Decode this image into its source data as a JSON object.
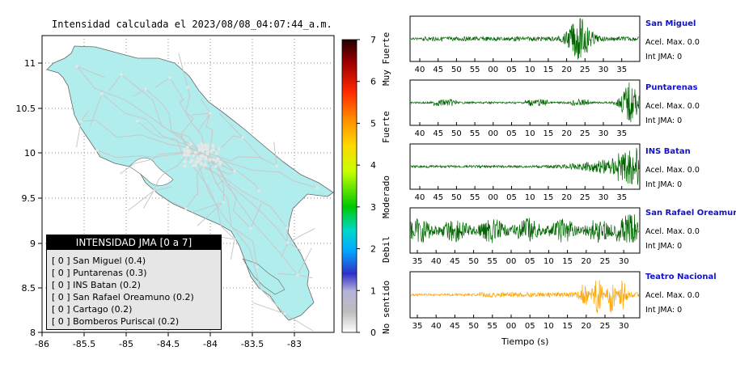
{
  "map": {
    "title": "Intensidad calculada el 2023/08/08_04:07:44_a.m.",
    "x_ticks": [
      "-86",
      "-85.5",
      "-85",
      "-84.5",
      "-84",
      "-83.5",
      "-83"
    ],
    "y_ticks": [
      "11",
      "10.5",
      "10",
      "9.5",
      "9",
      "8.5",
      "8"
    ],
    "land_color": "#b2eded",
    "road_color": "#c8c8c8"
  },
  "legend": {
    "header": "INTENSIDAD JMA [0 a 7]",
    "items": [
      "[ 0 ]  San Miguel (0.4)",
      "[ 0 ]  Puntarenas (0.3)",
      "[ 0 ]  INS Batan (0.2)",
      "[ 0 ]  San Rafael Oreamuno (0.2)",
      "[ 0 ]  Cartago (0.2)",
      "[ 0 ]  Bomberos Puriscal (0.2)"
    ]
  },
  "colorbar": {
    "ticks": [
      "7",
      "6",
      "5",
      "4",
      "3",
      "2",
      "1",
      "0"
    ],
    "category_labels": [
      "Muy Fuerte",
      "Fuerte",
      "Moderado",
      "Debil",
      "No sentido"
    ]
  },
  "waveforms": {
    "x_axis_label": "Tiempo (s)",
    "stations": [
      {
        "name": "San Miguel",
        "acel": "Acel. Max. 0.0",
        "jma": "Int JMA: 0",
        "ticks": [
          "40",
          "45",
          "50",
          "55",
          "00",
          "05",
          "10",
          "15",
          "20",
          "25",
          "30",
          "35"
        ],
        "color": "#006400"
      },
      {
        "name": "Puntarenas",
        "acel": "Acel. Max. 0.0",
        "jma": "Int JMA: 0",
        "ticks": [
          "40",
          "45",
          "50",
          "55",
          "00",
          "05",
          "10",
          "15",
          "20",
          "25",
          "30",
          "35"
        ],
        "color": "#006400"
      },
      {
        "name": "INS Batan",
        "acel": "Acel. Max. 0.0",
        "jma": "Int JMA: 0",
        "ticks": [
          "40",
          "45",
          "50",
          "55",
          "00",
          "05",
          "10",
          "15",
          "20",
          "25",
          "30",
          "35"
        ],
        "color": "#006400"
      },
      {
        "name": "San Rafael Oreamuno",
        "acel": "Acel. Max. 0.0",
        "jma": "Int JMA: 0",
        "ticks": [
          "35",
          "40",
          "45",
          "50",
          "55",
          "00",
          "05",
          "10",
          "15",
          "20",
          "25",
          "30"
        ],
        "color": "#006400"
      },
      {
        "name": "Teatro Nacional",
        "acel": "Acel. Max. 0.0",
        "jma": "Int JMA: 0",
        "ticks": [
          "35",
          "40",
          "45",
          "50",
          "55",
          "00",
          "05",
          "10",
          "15",
          "20",
          "25",
          "30"
        ],
        "color": "#ffa500"
      }
    ]
  },
  "chart_data": [
    {
      "type": "map",
      "title": "Intensidad calculada el 2023/08/08_04:07:44_a.m.",
      "xlim": [
        -86,
        -82.5
      ],
      "ylim": [
        8,
        11.3
      ],
      "x_ticks": [
        -86,
        -85.5,
        -85,
        -84.5,
        -84,
        -83.5,
        -83
      ],
      "y_ticks": [
        8,
        8.5,
        9,
        9.5,
        10,
        10.5,
        11
      ],
      "legend": "bottom-left",
      "stations": [
        {
          "name": "San Miguel",
          "jma": 0.4
        },
        {
          "name": "Puntarenas",
          "jma": 0.3
        },
        {
          "name": "INS Batan",
          "jma": 0.2
        },
        {
          "name": "San Rafael Oreamuno",
          "jma": 0.2
        },
        {
          "name": "Cartago",
          "jma": 0.2
        },
        {
          "name": "Bomberos Puriscal",
          "jma": 0.2
        }
      ]
    },
    {
      "type": "colorbar",
      "range": [
        0,
        7
      ],
      "ticks": [
        0,
        1,
        2,
        3,
        4,
        5,
        6,
        7
      ]
    },
    {
      "type": "line",
      "xlabel": "Tiempo (s)",
      "series": [
        {
          "name": "San Miguel",
          "acel_max": 0.0,
          "int_jma": 0
        },
        {
          "name": "Puntarenas",
          "acel_max": 0.0,
          "int_jma": 0
        },
        {
          "name": "INS Batan",
          "acel_max": 0.0,
          "int_jma": 0
        },
        {
          "name": "San Rafael Oreamuno",
          "acel_max": 0.0,
          "int_jma": 0
        },
        {
          "name": "Teatro Nacional",
          "acel_max": 0.0,
          "int_jma": 0
        }
      ]
    }
  ]
}
